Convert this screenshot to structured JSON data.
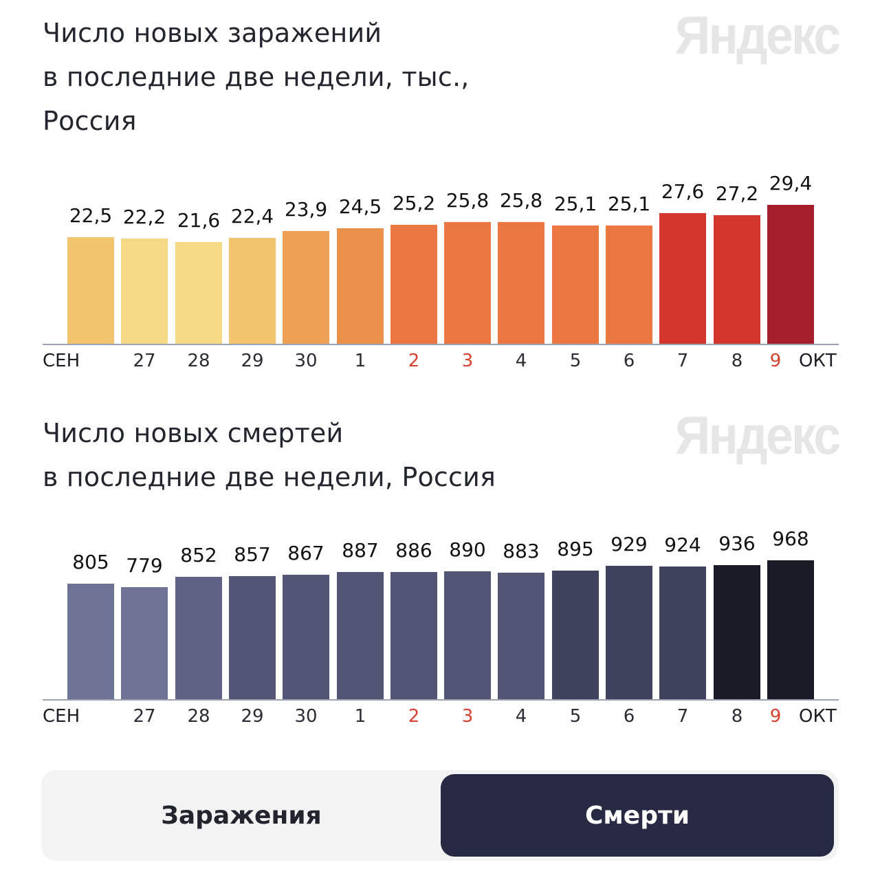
{
  "logo": "Яндекс",
  "chart_data": [
    {
      "type": "bar",
      "title": "Число новых заражений в последние две недели, тыс., Россия",
      "title_lines": [
        "Число новых заражений",
        "в последние две недели, тыс.,",
        "Россия"
      ],
      "categories": [
        "26 СЕН",
        "27",
        "28",
        "29",
        "30",
        "1",
        "2",
        "3",
        "4",
        "5",
        "6",
        "7",
        "8",
        "9 ОКТ"
      ],
      "tick_labels": [
        "",
        "27",
        "28",
        "29",
        "30",
        "1",
        "2",
        "3",
        "4",
        "5",
        "6",
        "7",
        "8",
        "9"
      ],
      "highlighted_ticks": [
        "2",
        "3",
        "9"
      ],
      "month_labels": {
        "start": "СЕН",
        "end": "ОКТ"
      },
      "values": [
        22.5,
        22.2,
        21.6,
        22.4,
        23.9,
        24.5,
        25.2,
        25.8,
        25.8,
        25.1,
        25.1,
        27.6,
        27.2,
        29.4
      ],
      "value_labels": [
        "22,5",
        "22,2",
        "21,6",
        "22,4",
        "23,9",
        "24,5",
        "25,2",
        "25,8",
        "25,8",
        "25,1",
        "25,1",
        "27,6",
        "27,2",
        "29,4"
      ],
      "colors": [
        "#f2c46d",
        "#f6d985",
        "#f6d985",
        "#f2c46d",
        "#eea054",
        "#ec914b",
        "#eb7843",
        "#eb7843",
        "#eb7843",
        "#eb7843",
        "#eb7843",
        "#d2352c",
        "#d2352c",
        "#a41f2b"
      ],
      "xlabel": "",
      "ylabel": "",
      "grid": false,
      "legend": "none"
    },
    {
      "type": "bar",
      "title": "Число новых смертей в последние две недели, Россия",
      "title_lines": [
        "Число новых смертей",
        "в последние две недели, Россия"
      ],
      "categories": [
        "26 СЕН",
        "27",
        "28",
        "29",
        "30",
        "1",
        "2",
        "3",
        "4",
        "5",
        "6",
        "7",
        "8",
        "9 ОКТ"
      ],
      "tick_labels": [
        "",
        "27",
        "28",
        "29",
        "30",
        "1",
        "2",
        "3",
        "4",
        "5",
        "6",
        "7",
        "8",
        "9"
      ],
      "highlighted_ticks": [
        "2",
        "3",
        "9"
      ],
      "month_labels": {
        "start": "СЕН",
        "end": "ОКТ"
      },
      "values": [
        805,
        779,
        852,
        857,
        867,
        887,
        886,
        890,
        883,
        895,
        929,
        924,
        936,
        968
      ],
      "value_labels": [
        "805",
        "779",
        "852",
        "857",
        "867",
        "887",
        "886",
        "890",
        "883",
        "895",
        "929",
        "924",
        "936",
        "968"
      ],
      "colors": [
        "#6e7294",
        "#6e7294",
        "#5f6284",
        "#525574",
        "#525574",
        "#525574",
        "#525574",
        "#525574",
        "#525574",
        "#3f425d",
        "#3f425d",
        "#3f425d",
        "#191a26",
        "#191a26"
      ],
      "xlabel": "",
      "ylabel": "",
      "grid": false,
      "legend": "none"
    }
  ],
  "toggle": {
    "options": [
      "Заражения",
      "Смерти"
    ],
    "selected": "Смерти"
  },
  "colors": {
    "tick_highlight": "#d8412f",
    "toggle_active": "#282a44",
    "toggle_bg": "#f3f3f4",
    "logo": "#e6e6e6"
  }
}
